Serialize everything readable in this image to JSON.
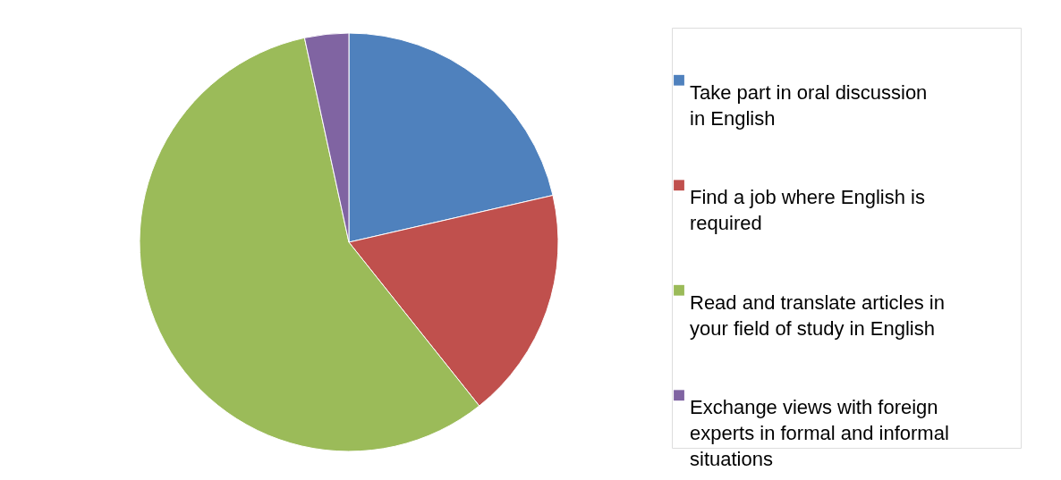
{
  "chart_data": {
    "type": "pie",
    "categories": [
      "Take part in oral discussion in English",
      "Find a job where English is required",
      "Read and translate articles in your field of study in English",
      "Exchange views with foreign experts in formal and informal situations"
    ],
    "values": [
      21.4,
      17.9,
      57.3,
      3.4
    ],
    "colors": [
      "#4f81bd",
      "#c0504d",
      "#9bbb59",
      "#8064a2"
    ],
    "legend": "right"
  }
}
